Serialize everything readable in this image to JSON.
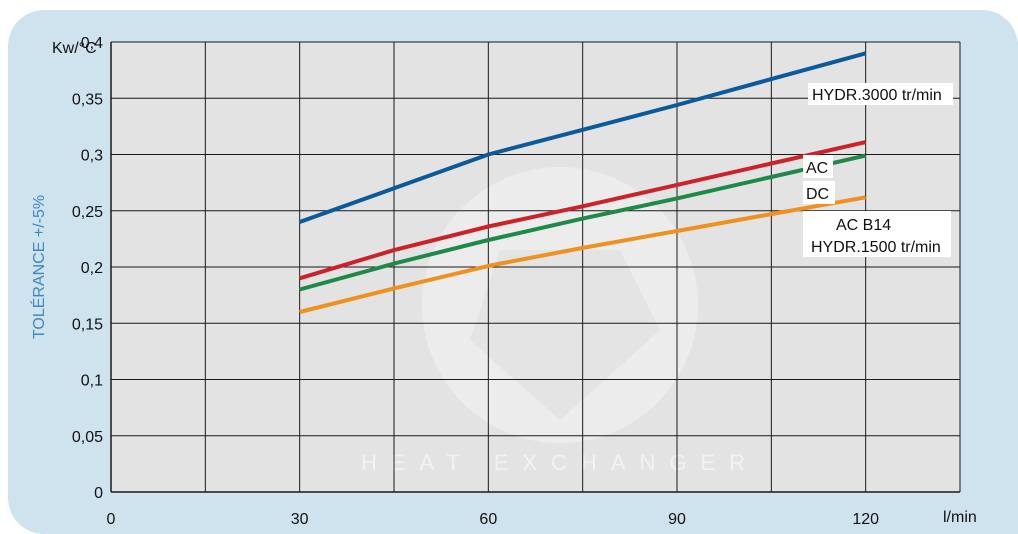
{
  "colors": {
    "panel": "#cfe3ee",
    "plot_bg": "#e3e3e3",
    "grid": "#1a1a1a",
    "ylabel": "#3f86c6"
  },
  "chart_data": {
    "type": "line",
    "ylabel": "TOLÉRANCE +/-5%",
    "yunit": "Kw/°C",
    "xunit": "l/min",
    "xlim": [
      0,
      135
    ],
    "ylim": [
      0,
      0.4
    ],
    "x_ticks": [
      "0",
      "30",
      "60",
      "90",
      "120"
    ],
    "y_ticks": [
      "0",
      "0,05",
      "0,1",
      "0,15",
      "0,2",
      "0,25",
      "0,3",
      "0,35",
      "0,4"
    ],
    "series": [
      {
        "name": "HYDR.3000 tr/min",
        "color": "#0a5a9c",
        "x": [
          30,
          45,
          60,
          75,
          90,
          105,
          120
        ],
        "y": [
          0.24,
          0.27,
          0.3,
          0.322,
          0.344,
          0.367,
          0.39
        ]
      },
      {
        "name": "AC",
        "color": "#cc2229",
        "x": [
          30,
          45,
          60,
          75,
          90,
          105,
          120
        ],
        "y": [
          0.19,
          0.215,
          0.236,
          0.254,
          0.273,
          0.292,
          0.311
        ]
      },
      {
        "name": "DC",
        "color": "#1e8a48",
        "x": [
          30,
          45,
          60,
          75,
          90,
          105,
          120
        ],
        "y": [
          0.18,
          0.203,
          0.224,
          0.243,
          0.261,
          0.28,
          0.299
        ]
      },
      {
        "name": "AC B14 HYDR.1500 tr/min",
        "color": "#ee9120",
        "x": [
          30,
          45,
          60,
          75,
          90,
          105,
          120
        ],
        "y": [
          0.16,
          0.181,
          0.201,
          0.217,
          0.232,
          0.247,
          0.262
        ]
      }
    ],
    "annotations": {
      "hydr3000": "HYDR.3000 tr/min",
      "ac": "AC",
      "dc": "DC",
      "acb14": "AC B14",
      "hydr1500": "HYDR.1500 tr/min"
    },
    "watermark": "HEAT EXCHANGER"
  }
}
